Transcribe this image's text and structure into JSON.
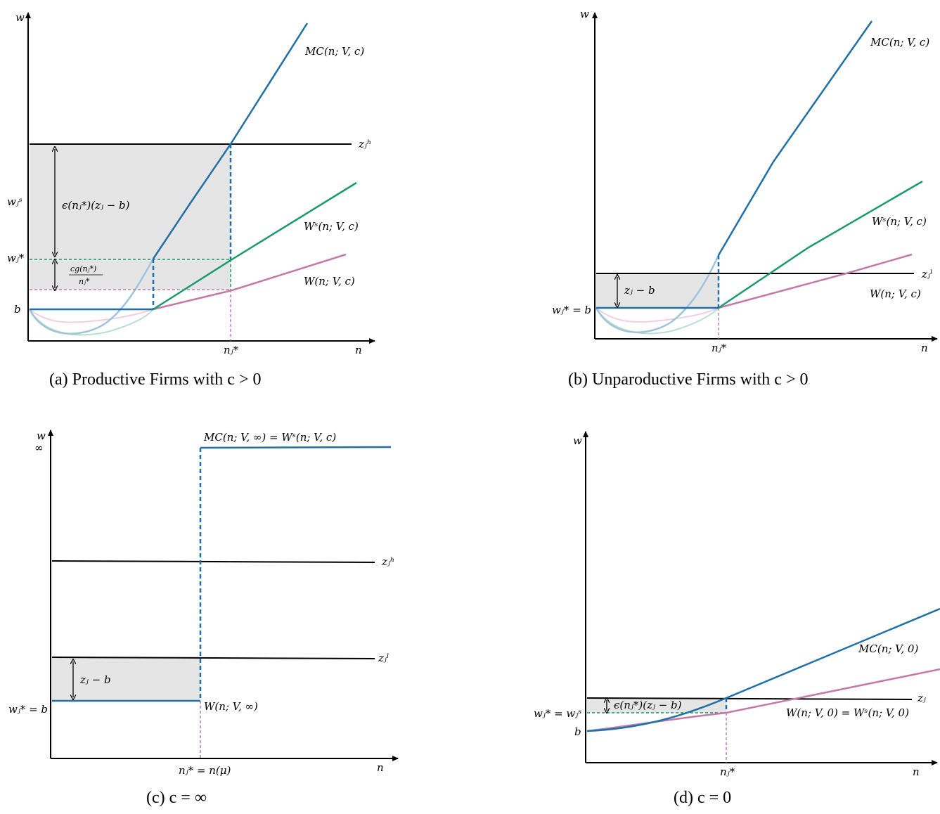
{
  "panel_a": {
    "y_axis": "w",
    "x_axis": "n",
    "mc": "MC(n; V, c)",
    "ws": "Wˢ(n; V, c)",
    "w": "W(n; V, c)",
    "zh": "zⱼʰ",
    "ws_tick": "wⱼˢ",
    "wstar_tick": "wⱼ*",
    "b_tick": "b",
    "n_tick": "nⱼ*",
    "bracket_top": "ϵ(nⱼ*)(zⱼ − b)",
    "bracket_bot_num": "cg(nⱼ*)",
    "bracket_bot_den": "nⱼ*",
    "caption": "(a) Productive Firms with c > 0"
  },
  "panel_b": {
    "y_axis": "w",
    "x_axis": "n",
    "mc": "MC(n; V, c)",
    "ws": "Wˢ(n; V, c)",
    "w": "W(n; V, c)",
    "zl": "zⱼˡ",
    "wstar_tick": "wⱼ* = b",
    "n_tick": "nⱼ*",
    "bracket": "zⱼ − b",
    "caption": "(b) Unparoductive Firms with c > 0"
  },
  "panel_c": {
    "y_axis": "w",
    "y_inf": "∞",
    "x_axis": "n",
    "mc": "MC(n; V, ∞) = Wˢ(n; V, c)",
    "w": "W(n; V, ∞)",
    "zh": "zⱼʰ",
    "zl": "zⱼˡ",
    "wstar_tick": "wⱼ* = b",
    "n_tick": "nⱼ* = n(μ)",
    "bracket": "zⱼ − b",
    "caption": "(c) c = ∞"
  },
  "panel_d": {
    "y_axis": "w",
    "x_axis": "n",
    "mc": "MC(n; V, 0)",
    "w": "W(n; V, 0) = Wˢ(n; V, 0)",
    "z": "zⱼ",
    "wstar_tick": "wⱼ* = wⱼˢ",
    "b_tick": "b",
    "n_tick": "nⱼ*",
    "bracket": "ϵ(nⱼ*)(zⱼ − b)",
    "caption": "(d) c = 0"
  }
}
